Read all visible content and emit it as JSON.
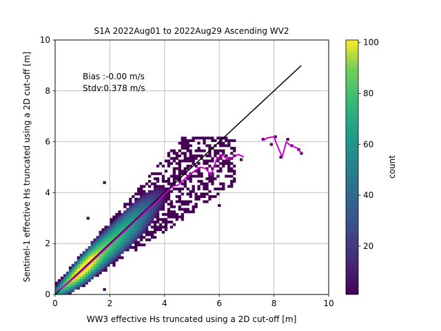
{
  "chart_data": {
    "type": "heatmap",
    "title": "S1A 2022Aug01 to 2022Aug29 Ascending WV2",
    "xlabel": "WW3 effective Hs truncated using a 2D cut-off [m]",
    "ylabel": "Sentinel-1 effective Hs truncated using a 2D cut-off [m]",
    "xlim": [
      0,
      10
    ],
    "ylim": [
      0,
      10
    ],
    "xticks": [
      "0",
      "2",
      "4",
      "6",
      "8",
      "10"
    ],
    "yticks": [
      "0",
      "2",
      "4",
      "6",
      "8",
      "10"
    ],
    "grid": true,
    "annotations": [
      "Bias :-0.00 m/s",
      "Stdv:0.378 m/s"
    ],
    "colorbar": {
      "label": "count",
      "range": [
        1,
        101
      ],
      "ticks": [
        "20",
        "40",
        "60",
        "80",
        "100"
      ],
      "colormap": "viridis"
    },
    "identity_line": {
      "x": [
        0,
        9
      ],
      "y": [
        0,
        9
      ],
      "color": "#000000"
    },
    "median_curve": {
      "color": "#cc00cc",
      "x": [
        0.1,
        0.3,
        0.5,
        0.7,
        0.9,
        1.1,
        1.3,
        1.5,
        1.7,
        1.9,
        2.1,
        2.3,
        2.5,
        2.7,
        2.9,
        3.1,
        3.3,
        3.5,
        3.7,
        3.9,
        4.1,
        4.3,
        4.5,
        4.7,
        4.9,
        5.1,
        5.3,
        5.5,
        5.7,
        5.9,
        6.1,
        6.3,
        6.5,
        6.7,
        6.9
      ],
      "y": [
        0.15,
        0.3,
        0.48,
        0.66,
        0.85,
        1.05,
        1.25,
        1.45,
        1.65,
        1.85,
        2.05,
        2.25,
        2.45,
        2.65,
        2.85,
        3.05,
        3.25,
        3.45,
        3.6,
        3.85,
        4.05,
        4.25,
        4.3,
        4.5,
        4.7,
        4.85,
        5.0,
        4.95,
        4.7,
        5.3,
        5.5,
        5.3,
        5.4,
        5.5,
        5.4
      ]
    },
    "median_curve_2": {
      "x": [
        7.6,
        7.75,
        8.0,
        8.1,
        8.3,
        8.45,
        8.6,
        8.75,
        8.85,
        9.0
      ],
      "y": [
        6.05,
        6.15,
        6.2,
        5.9,
        5.4,
        6.0,
        5.85,
        5.8,
        5.75,
        5.55
      ]
    },
    "outlier_bins": [
      [
        6.0,
        5.95
      ],
      [
        7.6,
        6.1
      ],
      [
        7.9,
        5.9
      ],
      [
        8.05,
        6.2
      ],
      [
        8.25,
        5.4
      ],
      [
        8.5,
        6.1
      ],
      [
        8.65,
        5.85
      ],
      [
        8.9,
        5.7
      ],
      [
        9.0,
        5.55
      ],
      [
        6.0,
        3.5
      ],
      [
        1.8,
        0.2
      ],
      [
        1.2,
        3.0
      ],
      [
        1.8,
        4.4
      ],
      [
        6.8,
        5.3
      ]
    ]
  }
}
